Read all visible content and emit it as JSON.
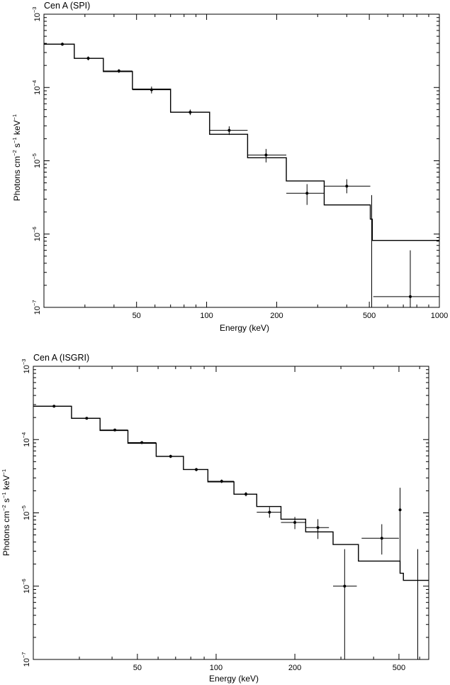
{
  "chart_data": [
    {
      "type": "line",
      "title": "Cen A (SPI)",
      "xlabel": "Energy (keV)",
      "ylabel": {
        "base": "Photons cm",
        "e1": "−2",
        "mid": " s",
        "e2": "−1",
        "mid2": " keV",
        "e3": "−1"
      },
      "xscale": "log",
      "yscale": "log",
      "xlim": [
        20,
        1000
      ],
      "ylim": [
        1e-07,
        0.001
      ],
      "xticks": [
        {
          "value": 50,
          "label": "50"
        },
        {
          "value": 100,
          "label": "100"
        },
        {
          "value": 200,
          "label": "200"
        },
        {
          "value": 500,
          "label": "500"
        },
        {
          "value": 1000,
          "label": "1000"
        }
      ],
      "yticks": [
        {
          "value": 0.001,
          "base": "10",
          "exp": "−3"
        },
        {
          "value": 0.0001,
          "base": "10",
          "exp": "−4"
        },
        {
          "value": 1e-05,
          "base": "10",
          "exp": "−5"
        },
        {
          "value": 1e-06,
          "base": "10",
          "exp": "−6"
        },
        {
          "value": 1e-07,
          "base": "10",
          "exp": "−7"
        }
      ],
      "model_steps": [
        {
          "x0": 20,
          "x1": 27,
          "y": 0.00039
        },
        {
          "x0": 27,
          "x1": 36,
          "y": 0.00025
        },
        {
          "x0": 36,
          "x1": 48,
          "y": 0.000165
        },
        {
          "x0": 48,
          "x1": 70,
          "y": 9.5e-05
        },
        {
          "x0": 70,
          "x1": 103,
          "y": 4.6e-05
        },
        {
          "x0": 103,
          "x1": 150,
          "y": 2.3e-05
        },
        {
          "x0": 150,
          "x1": 220,
          "y": 1.1e-05
        },
        {
          "x0": 220,
          "x1": 320,
          "y": 5.3e-06
        },
        {
          "x0": 320,
          "x1": 505,
          "y": 2.5e-06
        },
        {
          "x0": 505,
          "x1": 515,
          "y": 1.6e-06
        },
        {
          "x0": 515,
          "x1": 1000,
          "y": 8.2e-07
        }
      ],
      "data_points": [
        {
          "x": 24,
          "xlo": 20,
          "xhi": 27,
          "y": 0.00039,
          "ylo": 0.00037,
          "yhi": 0.00041
        },
        {
          "x": 31,
          "xlo": 27,
          "xhi": 36,
          "y": 0.00025,
          "ylo": 0.000235,
          "yhi": 0.000265
        },
        {
          "x": 42,
          "xlo": 36,
          "xhi": 48,
          "y": 0.000168,
          "ylo": 0.000158,
          "yhi": 0.000178
        },
        {
          "x": 58,
          "xlo": 48,
          "xhi": 70,
          "y": 9.3e-05,
          "ylo": 8.3e-05,
          "yhi": 0.000103
        },
        {
          "x": 85,
          "xlo": 70,
          "xhi": 103,
          "y": 4.6e-05,
          "ylo": 4.2e-05,
          "yhi": 5e-05
        },
        {
          "x": 125,
          "xlo": 103,
          "xhi": 150,
          "y": 2.6e-05,
          "ylo": 2.25e-05,
          "yhi": 2.95e-05
        },
        {
          "x": 180,
          "xlo": 150,
          "xhi": 220,
          "y": 1.2e-05,
          "ylo": 9.5e-06,
          "yhi": 1.45e-05
        },
        {
          "x": 270,
          "xlo": 220,
          "xhi": 320,
          "y": 3.6e-06,
          "ylo": 2.5e-06,
          "yhi": 4.8e-06
        },
        {
          "x": 400,
          "xlo": 320,
          "xhi": 505,
          "y": 4.5e-06,
          "ylo": 3.6e-06,
          "yhi": 5.6e-06
        },
        {
          "x": 750,
          "xlo": 520,
          "xhi": 1000,
          "y": 1.4e-07,
          "ylo": 1e-07,
          "yhi": 6e-07
        }
      ],
      "error_bars": [
        {
          "x": 512,
          "ylo": 1e-07,
          "yhi": 3.4e-06
        }
      ]
    },
    {
      "type": "line",
      "title": "Cen A (ISGRI)",
      "xlabel": "Energy (keV)",
      "ylabel": {
        "base": "Photons cm",
        "e1": "−2",
        "mid": " s",
        "e2": "−1",
        "mid2": " keV",
        "e3": "−1"
      },
      "xscale": "log",
      "yscale": "log",
      "xlim": [
        20,
        650
      ],
      "ylim": [
        1e-07,
        0.001
      ],
      "xticks": [
        {
          "value": 50,
          "label": "50"
        },
        {
          "value": 100,
          "label": "100"
        },
        {
          "value": 200,
          "label": "200"
        },
        {
          "value": 500,
          "label": "500"
        }
      ],
      "yticks": [
        {
          "value": 0.001,
          "base": "10",
          "exp": "−3"
        },
        {
          "value": 0.0001,
          "base": "10",
          "exp": "−4"
        },
        {
          "value": 1e-05,
          "base": "10",
          "exp": "−5"
        },
        {
          "value": 1e-06,
          "base": "10",
          "exp": "−6"
        },
        {
          "value": 1e-07,
          "base": "10",
          "exp": "−7"
        }
      ],
      "model_steps": [
        {
          "x0": 20,
          "x1": 28,
          "y": 0.000285
        },
        {
          "x0": 28,
          "x1": 36,
          "y": 0.000195
        },
        {
          "x0": 36,
          "x1": 46,
          "y": 0.000133
        },
        {
          "x0": 46,
          "x1": 59,
          "y": 8.9e-05
        },
        {
          "x0": 59,
          "x1": 75,
          "y": 5.9e-05
        },
        {
          "x0": 75,
          "x1": 93,
          "y": 3.9e-05
        },
        {
          "x0": 93,
          "x1": 117,
          "y": 2.65e-05
        },
        {
          "x0": 117,
          "x1": 143,
          "y": 1.8e-05
        },
        {
          "x0": 143,
          "x1": 177,
          "y": 1.22e-05
        },
        {
          "x0": 177,
          "x1": 220,
          "y": 8.2e-06
        },
        {
          "x0": 220,
          "x1": 280,
          "y": 5.5e-06
        },
        {
          "x0": 280,
          "x1": 350,
          "y": 3.7e-06
        },
        {
          "x0": 350,
          "x1": 505,
          "y": 2.2e-06
        },
        {
          "x0": 505,
          "x1": 520,
          "y": 1.5e-06
        },
        {
          "x0": 520,
          "x1": 650,
          "y": 1.2e-06
        }
      ],
      "data_points": [
        {
          "x": 24,
          "xlo": 20,
          "xhi": 28,
          "y": 0.000285,
          "ylo": 0.000275,
          "yhi": 0.000295
        },
        {
          "x": 32,
          "xlo": 28,
          "xhi": 36,
          "y": 0.000195,
          "ylo": 0.000188,
          "yhi": 0.000202
        },
        {
          "x": 41,
          "xlo": 36,
          "xhi": 46,
          "y": 0.000135,
          "ylo": 0.00013,
          "yhi": 0.00014
        },
        {
          "x": 52,
          "xlo": 46,
          "xhi": 59,
          "y": 9.1e-05,
          "ylo": 8.7e-05,
          "yhi": 9.5e-05
        },
        {
          "x": 67,
          "xlo": 59,
          "xhi": 75,
          "y": 5.9e-05,
          "ylo": 5.6e-05,
          "yhi": 6.2e-05
        },
        {
          "x": 84,
          "xlo": 75,
          "xhi": 93,
          "y": 3.9e-05,
          "ylo": 3.7e-05,
          "yhi": 4.1e-05
        },
        {
          "x": 105,
          "xlo": 93,
          "xhi": 117,
          "y": 2.7e-05,
          "ylo": 2.55e-05,
          "yhi": 2.85e-05
        },
        {
          "x": 130,
          "xlo": 117,
          "xhi": 143,
          "y": 1.8e-05,
          "ylo": 1.68e-05,
          "yhi": 1.92e-05
        },
        {
          "x": 160,
          "xlo": 143,
          "xhi": 177,
          "y": 1.02e-05,
          "ylo": 8.6e-06,
          "yhi": 1.2e-05
        },
        {
          "x": 200,
          "xlo": 177,
          "xhi": 220,
          "y": 7.4e-06,
          "ylo": 6e-06,
          "yhi": 8.8e-06
        },
        {
          "x": 245,
          "xlo": 220,
          "xhi": 270,
          "y": 6.3e-06,
          "ylo": 4.4e-06,
          "yhi": 8.2e-06
        },
        {
          "x": 310,
          "xlo": 280,
          "xhi": 345,
          "y": 1e-06,
          "ylo": 1e-07,
          "yhi": 3.2e-06
        },
        {
          "x": 430,
          "xlo": 360,
          "xhi": 500,
          "y": 4.5e-06,
          "ylo": 2.7e-06,
          "yhi": 7e-06
        },
        {
          "x": 505,
          "xlo": 505,
          "xhi": 505,
          "y": 1.1e-05,
          "ylo": 1.5e-06,
          "yhi": 2.2e-05
        }
      ],
      "error_bars": [
        {
          "x": 590,
          "ylo": 1e-07,
          "yhi": 3.2e-06
        }
      ]
    }
  ]
}
